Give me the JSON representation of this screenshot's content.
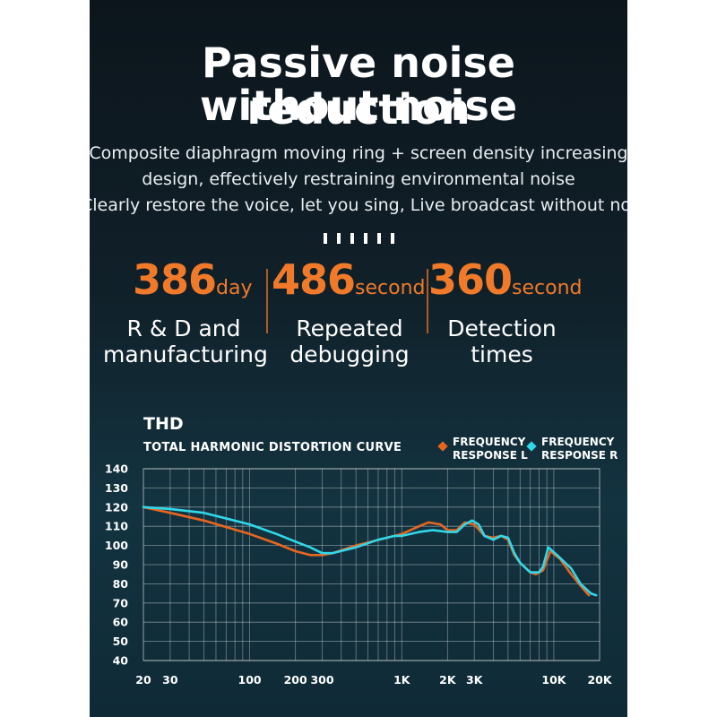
{
  "headline": {
    "line1": "Passive noise reduction",
    "line2": "without noise"
  },
  "subtitle": {
    "line1": "Composite diaphragm moving ring + screen density increasing",
    "line2": "design, effectively restraining environmental noise",
    "line3": "Clearly restore the voice, let you sing, Live broadcast without noise"
  },
  "stats": [
    {
      "number": "386",
      "unit": "day",
      "label_line1": "R & D and",
      "label_line2": "manufacturing"
    },
    {
      "number": "486",
      "unit": "second",
      "label_line1": "Repeated",
      "label_line2": "debugging"
    },
    {
      "number": "360",
      "unit": "second",
      "label_line1": "Detection",
      "label_line2": "times"
    }
  ],
  "colors": {
    "accent_orange": "#f07a2a",
    "series_left": "#e8661f",
    "series_right": "#30d8ea",
    "grid": "#ffffff"
  },
  "chart_data": {
    "type": "line",
    "title": "THD",
    "subtitle": "TOTAL HARMONIC DISTORTION CURVE",
    "x_scale": "log",
    "xlim": [
      20,
      20000
    ],
    "ylim": [
      40,
      140
    ],
    "x_ticks": [
      {
        "value": 20,
        "label": "20"
      },
      {
        "value": 30,
        "label": "30"
      },
      {
        "value": 100,
        "label": "100"
      },
      {
        "value": 200,
        "label": "200"
      },
      {
        "value": 300,
        "label": "300"
      },
      {
        "value": 1000,
        "label": "1K"
      },
      {
        "value": 2000,
        "label": "2K"
      },
      {
        "value": 3000,
        "label": "3K"
      },
      {
        "value": 10000,
        "label": "10K"
      },
      {
        "value": 20000,
        "label": "20K"
      }
    ],
    "y_ticks": [
      140,
      130,
      120,
      110,
      100,
      90,
      80,
      70,
      60,
      50,
      40
    ],
    "grid": true,
    "legend_position": "top-right",
    "series": [
      {
        "name": "FREQUENCY RESPONSE L",
        "points": [
          [
            20,
            120
          ],
          [
            30,
            117
          ],
          [
            50,
            113
          ],
          [
            100,
            106
          ],
          [
            150,
            101
          ],
          [
            200,
            97
          ],
          [
            250,
            95
          ],
          [
            300,
            95
          ],
          [
            350,
            96
          ],
          [
            500,
            100
          ],
          [
            800,
            104
          ],
          [
            1000,
            106
          ],
          [
            1300,
            110
          ],
          [
            1500,
            112
          ],
          [
            1800,
            111
          ],
          [
            2000,
            108
          ],
          [
            2300,
            108
          ],
          [
            2600,
            112
          ],
          [
            3000,
            111
          ],
          [
            3500,
            105
          ],
          [
            4000,
            104
          ],
          [
            4500,
            105
          ],
          [
            5000,
            103
          ],
          [
            5500,
            95
          ],
          [
            6000,
            91
          ],
          [
            7000,
            86
          ],
          [
            7600,
            85
          ],
          [
            8500,
            87
          ],
          [
            9500,
            97
          ],
          [
            11000,
            93
          ],
          [
            13000,
            85
          ],
          [
            15000,
            79
          ],
          [
            17000,
            74
          ]
        ]
      },
      {
        "name": "FREQUENCY RESPONSE R",
        "points": [
          [
            20,
            120
          ],
          [
            30,
            119
          ],
          [
            50,
            117
          ],
          [
            100,
            111
          ],
          [
            150,
            106
          ],
          [
            200,
            102
          ],
          [
            250,
            99
          ],
          [
            300,
            96
          ],
          [
            350,
            96
          ],
          [
            500,
            99
          ],
          [
            700,
            103
          ],
          [
            900,
            105
          ],
          [
            1000,
            105
          ],
          [
            1300,
            107
          ],
          [
            1600,
            108
          ],
          [
            2000,
            107
          ],
          [
            2300,
            107
          ],
          [
            2600,
            111
          ],
          [
            2900,
            113
          ],
          [
            3200,
            111
          ],
          [
            3500,
            105
          ],
          [
            4000,
            103
          ],
          [
            4500,
            105
          ],
          [
            5000,
            104
          ],
          [
            5500,
            96
          ],
          [
            6000,
            91
          ],
          [
            7000,
            86
          ],
          [
            8000,
            86
          ],
          [
            8500,
            89
          ],
          [
            9200,
            99
          ],
          [
            10500,
            95
          ],
          [
            13000,
            88
          ],
          [
            15000,
            80
          ],
          [
            17500,
            75
          ],
          [
            19000,
            74
          ]
        ]
      }
    ]
  }
}
